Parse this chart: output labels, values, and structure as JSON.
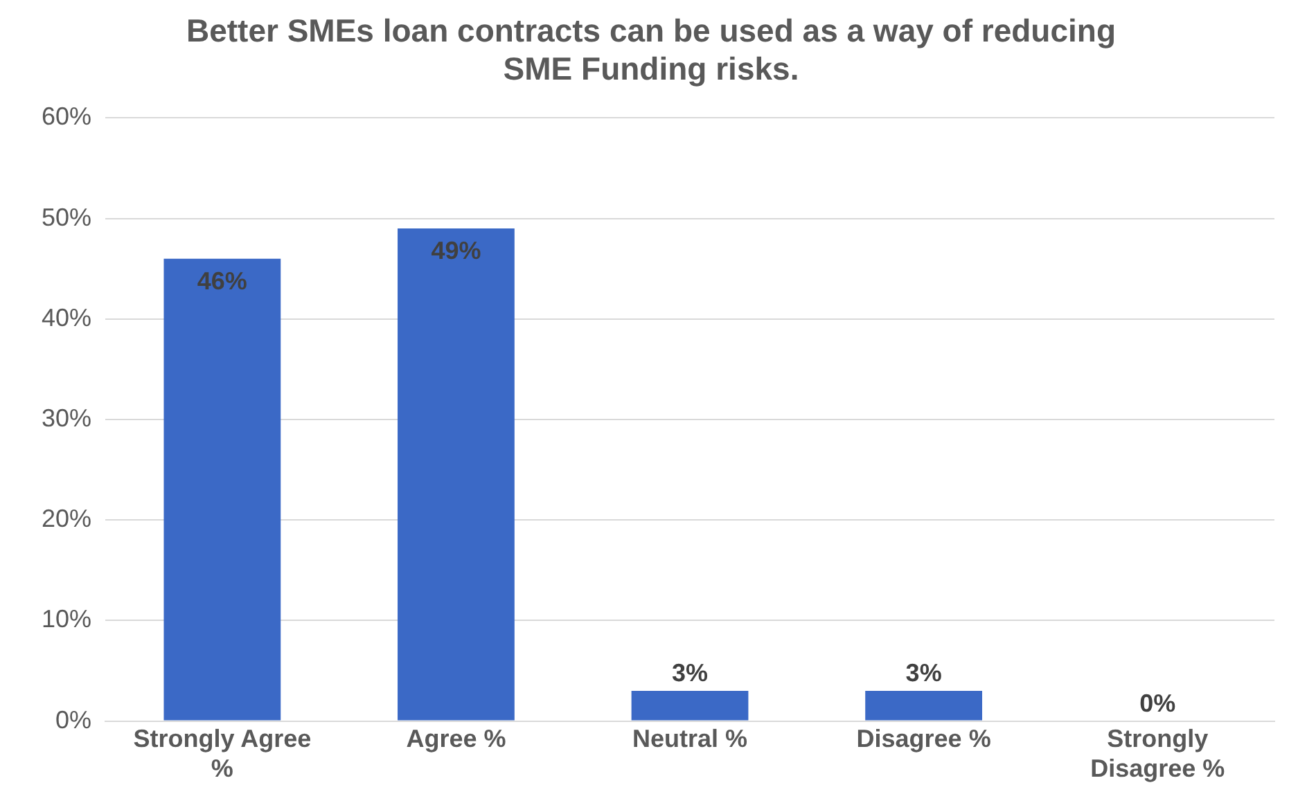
{
  "chart_data": {
    "type": "bar",
    "title": "Better SMEs loan contracts can be used as a way of reducing SME Funding risks.",
    "categories": [
      "Strongly Agree %",
      "Agree %",
      "Neutral %",
      "Disagree %",
      "Strongly Disagree %"
    ],
    "values": [
      46,
      49,
      3,
      3,
      0
    ],
    "value_labels": [
      "46%",
      "49%",
      "3%",
      "3%",
      "0%"
    ],
    "color": "#3b69c6",
    "ylim": [
      0,
      60
    ],
    "yticks": [
      {
        "value": 0,
        "label": "0%"
      },
      {
        "value": 10,
        "label": "10%"
      },
      {
        "value": 20,
        "label": "20%"
      },
      {
        "value": 30,
        "label": "30%"
      },
      {
        "value": 40,
        "label": "40%"
      },
      {
        "value": 50,
        "label": "50%"
      },
      {
        "value": 60,
        "label": "60%"
      }
    ],
    "grid": "y",
    "legend": false
  }
}
